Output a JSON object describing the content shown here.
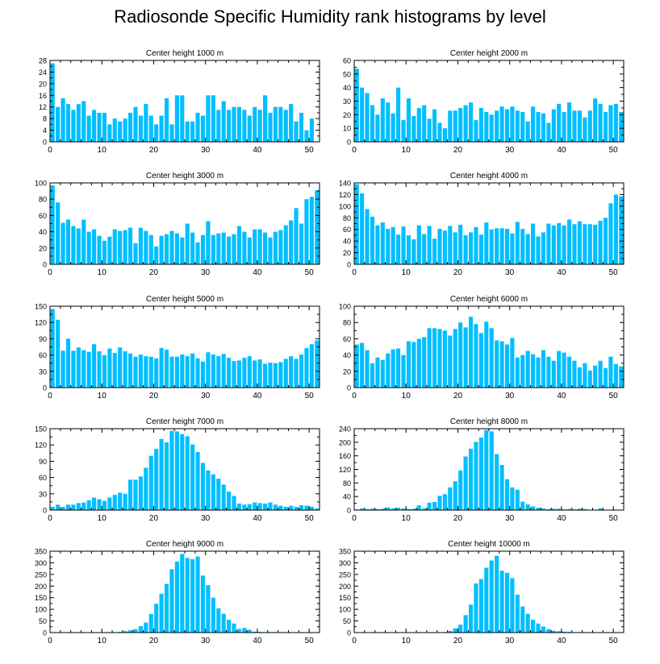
{
  "title": "Radiosonde Specific Humidity rank histograms by level",
  "bar_color": "#00bfff",
  "chart_data": [
    {
      "type": "bar",
      "title": "Center height 1000 m",
      "xlim": [
        0,
        52
      ],
      "ylim": [
        0,
        28
      ],
      "yticks": [
        0,
        4,
        8,
        12,
        16,
        20,
        24,
        28
      ],
      "xticks": [
        0,
        10,
        20,
        30,
        40,
        50
      ],
      "values": [
        27,
        12,
        15,
        13,
        11,
        13,
        14,
        9,
        11,
        10,
        10,
        6,
        8,
        7,
        8,
        10,
        12,
        9,
        13,
        9,
        6,
        9,
        15,
        6,
        16,
        16,
        7,
        7,
        10,
        9,
        16,
        16,
        11,
        14,
        11,
        12,
        12,
        11,
        9,
        12,
        11,
        16,
        10,
        12,
        12,
        11,
        13,
        7,
        10,
        4,
        8
      ]
    },
    {
      "type": "bar",
      "title": "Center height 2000 m",
      "xlim": [
        0,
        52
      ],
      "ylim": [
        0,
        60
      ],
      "yticks": [
        0,
        10,
        20,
        30,
        40,
        50,
        60
      ],
      "xticks": [
        0,
        10,
        20,
        30,
        40,
        50
      ],
      "values": [
        54,
        40,
        36,
        27,
        20,
        32,
        29,
        21,
        40,
        16,
        32,
        19,
        25,
        27,
        17,
        24,
        14,
        10,
        23,
        23,
        25,
        27,
        29,
        16,
        25,
        22,
        20,
        23,
        26,
        24,
        26,
        23,
        22,
        15,
        26,
        22,
        21,
        14,
        24,
        28,
        22,
        29,
        23,
        23,
        18,
        23,
        32,
        28,
        22,
        27,
        28,
        22
      ]
    },
    {
      "type": "bar",
      "title": "Center height 3000 m",
      "xlim": [
        0,
        52
      ],
      "ylim": [
        0,
        100
      ],
      "yticks": [
        0,
        20,
        40,
        60,
        80,
        100
      ],
      "xticks": [
        0,
        10,
        20,
        30,
        40,
        50
      ],
      "values": [
        97,
        76,
        51,
        55,
        47,
        44,
        55,
        40,
        43,
        35,
        29,
        34,
        43,
        41,
        42,
        45,
        26,
        45,
        41,
        36,
        22,
        35,
        37,
        41,
        38,
        33,
        50,
        39,
        27,
        36,
        53,
        36,
        38,
        39,
        34,
        37,
        47,
        40,
        33,
        43,
        43,
        39,
        33,
        40,
        42,
        48,
        54,
        69,
        50,
        80,
        83,
        91
      ]
    },
    {
      "type": "bar",
      "title": "Center height 4000 m",
      "xlim": [
        0,
        52
      ],
      "ylim": [
        0,
        140
      ],
      "yticks": [
        0,
        20,
        40,
        60,
        80,
        100,
        120,
        140
      ],
      "xticks": [
        0,
        10,
        20,
        30,
        40,
        50
      ],
      "values": [
        138,
        122,
        95,
        82,
        67,
        72,
        61,
        64,
        51,
        65,
        50,
        43,
        67,
        52,
        66,
        44,
        61,
        58,
        66,
        55,
        68,
        50,
        55,
        64,
        51,
        72,
        60,
        62,
        62,
        61,
        53,
        73,
        61,
        52,
        70,
        48,
        55,
        70,
        67,
        71,
        67,
        77,
        69,
        74,
        69,
        69,
        68,
        75,
        80,
        105,
        120,
        117
      ]
    },
    {
      "type": "bar",
      "title": "Center height 5000 m",
      "xlim": [
        0,
        52
      ],
      "ylim": [
        0,
        150
      ],
      "yticks": [
        0,
        30,
        60,
        90,
        120,
        150
      ],
      "xticks": [
        0,
        10,
        20,
        30,
        40,
        50
      ],
      "values": [
        145,
        125,
        68,
        90,
        68,
        74,
        69,
        66,
        80,
        67,
        60,
        72,
        64,
        74,
        67,
        63,
        57,
        61,
        58,
        57,
        54,
        73,
        70,
        57,
        57,
        61,
        58,
        63,
        54,
        48,
        65,
        61,
        58,
        62,
        55,
        49,
        50,
        55,
        58,
        50,
        52,
        44,
        46,
        45,
        47,
        53,
        58,
        53,
        61,
        73,
        80,
        87
      ]
    },
    {
      "type": "bar",
      "title": "Center height 6000 m",
      "xlim": [
        0,
        52
      ],
      "ylim": [
        0,
        100
      ],
      "yticks": [
        0,
        20,
        40,
        60,
        80,
        100
      ],
      "xticks": [
        0,
        10,
        20,
        30,
        40,
        50
      ],
      "values": [
        53,
        55,
        46,
        30,
        37,
        34,
        42,
        47,
        48,
        40,
        57,
        56,
        60,
        62,
        73,
        73,
        72,
        70,
        64,
        72,
        80,
        74,
        87,
        78,
        67,
        81,
        73,
        58,
        57,
        53,
        61,
        37,
        40,
        45,
        41,
        37,
        46,
        38,
        33,
        45,
        43,
        38,
        33,
        25,
        30,
        21,
        27,
        33,
        24,
        38,
        29,
        26
      ]
    },
    {
      "type": "bar",
      "title": "Center height 7000 m",
      "xlim": [
        0,
        52
      ],
      "ylim": [
        0,
        150
      ],
      "yticks": [
        0,
        30,
        60,
        90,
        120,
        150
      ],
      "xticks": [
        0,
        10,
        20,
        30,
        40,
        50
      ],
      "values": [
        6,
        10,
        6,
        10,
        10,
        13,
        14,
        18,
        23,
        20,
        17,
        23,
        28,
        32,
        30,
        56,
        56,
        62,
        78,
        100,
        113,
        131,
        125,
        146,
        145,
        140,
        136,
        121,
        107,
        87,
        73,
        66,
        58,
        47,
        34,
        26,
        12,
        10,
        11,
        14,
        13,
        12,
        14,
        10,
        8,
        6,
        8,
        6,
        9,
        8,
        6,
        3
      ]
    },
    {
      "type": "bar",
      "title": "Center height 8000 m",
      "xlim": [
        0,
        52
      ],
      "ylim": [
        0,
        240
      ],
      "yticks": [
        0,
        40,
        80,
        120,
        160,
        200,
        240
      ],
      "xticks": [
        0,
        10,
        20,
        30,
        40,
        50
      ],
      "values": [
        2,
        5,
        3,
        4,
        3,
        4,
        8,
        5,
        7,
        5,
        3,
        4,
        14,
        5,
        22,
        24,
        42,
        47,
        67,
        85,
        117,
        158,
        181,
        201,
        214,
        236,
        232,
        165,
        133,
        91,
        67,
        60,
        25,
        17,
        11,
        7,
        5,
        3,
        4,
        4,
        2,
        3,
        2,
        4,
        3,
        1,
        1,
        5,
        1,
        1,
        1,
        1
      ]
    },
    {
      "type": "bar",
      "title": "Center height 9000 m",
      "xlim": [
        0,
        52
      ],
      "ylim": [
        0,
        350
      ],
      "yticks": [
        0,
        50,
        100,
        150,
        200,
        250,
        300,
        350
      ],
      "xticks": [
        0,
        10,
        20,
        30,
        40,
        50
      ],
      "values": [
        1,
        1,
        1,
        1,
        1,
        1,
        1,
        1,
        1,
        1,
        1,
        1,
        1,
        3,
        6,
        10,
        15,
        28,
        43,
        80,
        124,
        167,
        209,
        272,
        306,
        338,
        321,
        316,
        327,
        245,
        204,
        150,
        104,
        81,
        55,
        39,
        16,
        20,
        12,
        4,
        3,
        2,
        2,
        2,
        1,
        1,
        1,
        1,
        1,
        1,
        1,
        1
      ]
    },
    {
      "type": "bar",
      "title": "Center height 10000 m",
      "xlim": [
        0,
        52
      ],
      "ylim": [
        0,
        350
      ],
      "yticks": [
        0,
        50,
        100,
        150,
        200,
        250,
        300,
        350
      ],
      "xticks": [
        0,
        10,
        20,
        30,
        40,
        50
      ],
      "values": [
        1,
        1,
        1,
        1,
        1,
        1,
        1,
        1,
        1,
        1,
        1,
        1,
        1,
        1,
        1,
        1,
        1,
        2,
        7,
        18,
        34,
        75,
        120,
        211,
        230,
        279,
        310,
        330,
        266,
        257,
        234,
        163,
        112,
        81,
        55,
        39,
        26,
        15,
        8,
        6,
        4,
        3,
        2,
        2,
        1,
        1,
        1,
        1,
        1,
        1,
        1,
        1
      ]
    }
  ]
}
